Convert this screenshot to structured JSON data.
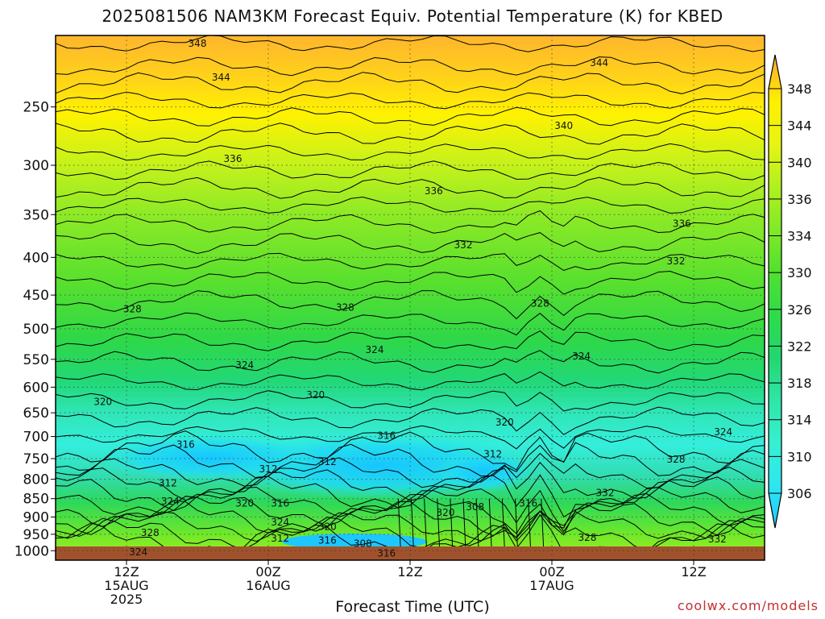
{
  "title": "2025081506 NAM3KM Forecast Equiv. Potential Temperature (K) for KBED",
  "footer": {
    "credit": "coolwx.com/models"
  },
  "chart_data": {
    "type": "heatmap",
    "title": "2025081506 NAM3KM Forecast Equiv. Potential Temperature (K) for KBED",
    "xlabel": "Forecast Time (UTC)",
    "ylabel": "",
    "x_ticks": [
      {
        "lines": [
          "12Z",
          "15AUG",
          "2025"
        ],
        "hour": 6
      },
      {
        "lines": [
          "00Z",
          "16AUG"
        ],
        "hour": 18
      },
      {
        "lines": [
          "12Z"
        ],
        "hour": 30
      },
      {
        "lines": [
          "00Z",
          "17AUG"
        ],
        "hour": 42
      },
      {
        "lines": [
          "12Z"
        ],
        "hour": 54
      }
    ],
    "x_range_hours": [
      0,
      60
    ],
    "y_ticks": [
      250,
      300,
      350,
      400,
      450,
      500,
      550,
      600,
      650,
      700,
      750,
      800,
      850,
      900,
      950,
      1000
    ],
    "y_range_hpa": [
      200,
      1030
    ],
    "y_scale": "log-pressure",
    "grid": "dotted",
    "colorbar": {
      "levels": [
        306,
        310,
        314,
        318,
        322,
        326,
        330,
        334,
        336,
        340,
        344,
        348
      ],
      "colors": [
        "#1ec8ff",
        "#2ee6f0",
        "#36f0d0",
        "#2ee6a6",
        "#22d670",
        "#2edc48",
        "#50e030",
        "#80ea26",
        "#b0f01e",
        "#e6f414",
        "#fff000",
        "#ffc02a",
        "#ffa830"
      ]
    },
    "contour_labels": [
      {
        "v": 348,
        "hour": 12.0,
        "p": 205
      },
      {
        "v": 344,
        "hour": 14.0,
        "p": 228
      },
      {
        "v": 344,
        "hour": 46.0,
        "p": 218
      },
      {
        "v": 340,
        "hour": 43.0,
        "p": 265
      },
      {
        "v": 336,
        "hour": 15.0,
        "p": 294
      },
      {
        "v": 336,
        "hour": 32.0,
        "p": 325
      },
      {
        "v": 336,
        "hour": 53.0,
        "p": 360
      },
      {
        "v": 332,
        "hour": 34.5,
        "p": 385
      },
      {
        "v": 332,
        "hour": 52.5,
        "p": 405
      },
      {
        "v": 328,
        "hour": 6.5,
        "p": 470
      },
      {
        "v": 328,
        "hour": 24.5,
        "p": 468
      },
      {
        "v": 328,
        "hour": 41.0,
        "p": 462
      },
      {
        "v": 324,
        "hour": 16.0,
        "p": 560
      },
      {
        "v": 324,
        "hour": 27.0,
        "p": 534
      },
      {
        "v": 324,
        "hour": 44.5,
        "p": 545
      },
      {
        "v": 320,
        "hour": 4.0,
        "p": 628
      },
      {
        "v": 320,
        "hour": 22.0,
        "p": 615
      },
      {
        "v": 320,
        "hour": 38.0,
        "p": 670
      },
      {
        "v": 324,
        "hour": 56.5,
        "p": 690
      },
      {
        "v": 316,
        "hour": 11.0,
        "p": 718
      },
      {
        "v": 316,
        "hour": 28.0,
        "p": 698
      },
      {
        "v": 312,
        "hour": 9.5,
        "p": 810
      },
      {
        "v": 312,
        "hour": 18.0,
        "p": 775
      },
      {
        "v": 312,
        "hour": 23.0,
        "p": 758
      },
      {
        "v": 312,
        "hour": 37.0,
        "p": 740
      },
      {
        "v": 328,
        "hour": 52.5,
        "p": 752
      },
      {
        "v": 332,
        "hour": 46.5,
        "p": 835
      },
      {
        "v": 324,
        "hour": 9.7,
        "p": 857
      },
      {
        "v": 320,
        "hour": 16.0,
        "p": 862
      },
      {
        "v": 316,
        "hour": 19.0,
        "p": 862
      },
      {
        "v": 308,
        "hour": 35.5,
        "p": 872
      },
      {
        "v": 316,
        "hour": 40.0,
        "p": 862
      },
      {
        "v": 320,
        "hour": 33.0,
        "p": 888
      },
      {
        "v": 324,
        "hour": 19.0,
        "p": 915
      },
      {
        "v": 320,
        "hour": 23.0,
        "p": 928
      },
      {
        "v": 328,
        "hour": 8.0,
        "p": 945
      },
      {
        "v": 312,
        "hour": 19.0,
        "p": 962
      },
      {
        "v": 316,
        "hour": 23.0,
        "p": 968
      },
      {
        "v": 308,
        "hour": 26.0,
        "p": 978
      },
      {
        "v": 328,
        "hour": 45.0,
        "p": 960
      },
      {
        "v": 332,
        "hour": 56.0,
        "p": 965
      },
      {
        "v": 324,
        "hour": 7.0,
        "p": 1005
      },
      {
        "v": 316,
        "hour": 28.0,
        "p": 1008
      }
    ]
  }
}
